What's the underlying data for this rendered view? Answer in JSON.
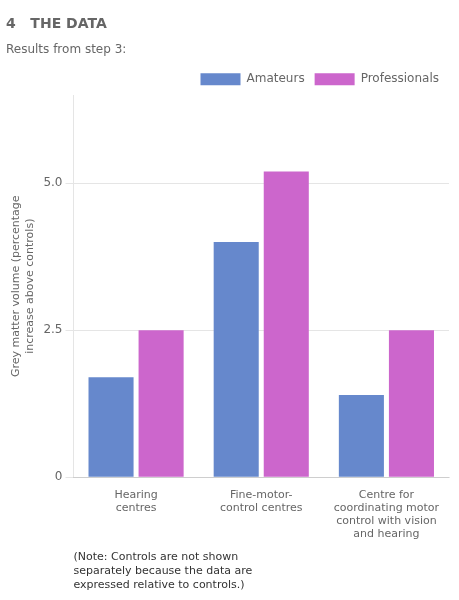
{
  "chart_data": {
    "type": "bar",
    "title": "4   THE DATA",
    "subtitle": "Results from step 3:",
    "categories": [
      "Hearing\ncentres",
      "Fine-motor-\ncontrol centres",
      "Centre for\ncoordinating motor\ncontrol with vision\nand hearing"
    ],
    "series": [
      {
        "name": "Amateurs",
        "color": "#6688cc",
        "values": [
          1.7,
          4.0,
          1.4
        ]
      },
      {
        "name": "Professionals",
        "color": "#cc66cc",
        "values": [
          2.5,
          5.2,
          2.5
        ]
      }
    ],
    "y_label": "Grey matter volume (percentage\nincrease above controls)",
    "ylim": [
      0,
      6.5
    ],
    "yticks": [
      0,
      2.5,
      {
        "value": 5,
        "label": "5.0"
      }
    ],
    "grid": "y",
    "legend": "upper right",
    "annotations": [
      "(Note: Controls are not shown\nseparately because the data are\nexpressed relative to controls.)"
    ]
  }
}
